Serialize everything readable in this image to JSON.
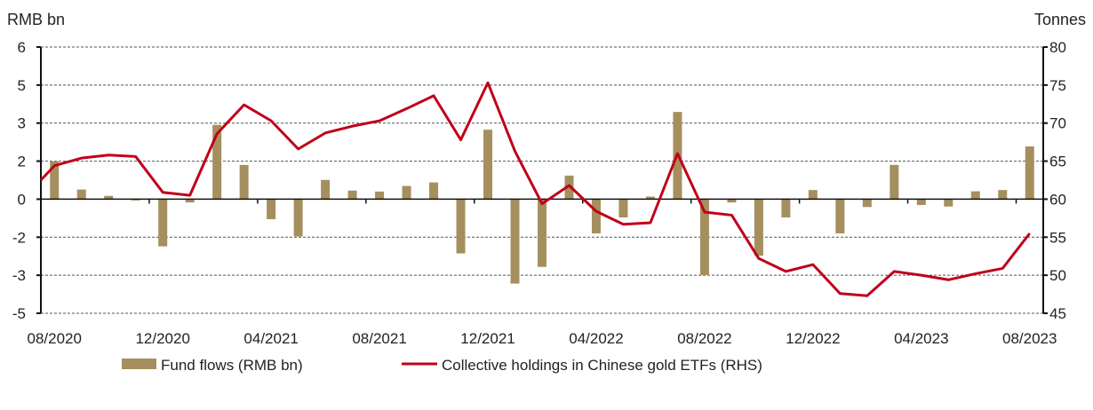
{
  "chart_data": {
    "type": "bar+line",
    "left_axis": {
      "title": "RMB bn",
      "range": [
        -4.5,
        6
      ],
      "step": 1.5,
      "tick_labels": [
        "6",
        "5",
        "3",
        "2",
        "0",
        "-2",
        "-3",
        "-5"
      ]
    },
    "right_axis": {
      "title": "Tonnes",
      "range": [
        45,
        80
      ],
      "step": 5,
      "tick_labels": [
        "80",
        "75",
        "70",
        "65",
        "60",
        "55",
        "50",
        "45"
      ]
    },
    "x_tick_labels": [
      "08/2020",
      "12/2020",
      "04/2021",
      "08/2021",
      "12/2021",
      "04/2022",
      "08/2022",
      "12/2022",
      "04/2023",
      "08/2023"
    ],
    "categories": [
      "08/2020",
      "09/2020",
      "10/2020",
      "11/2020",
      "12/2020",
      "01/2021",
      "02/2021",
      "03/2021",
      "04/2021",
      "05/2021",
      "06/2021",
      "07/2021",
      "08/2021",
      "09/2021",
      "10/2021",
      "11/2021",
      "12/2021",
      "01/2022",
      "02/2022",
      "03/2022",
      "04/2022",
      "05/2022",
      "06/2022",
      "07/2022",
      "08/2022",
      "09/2022",
      "10/2022",
      "11/2022",
      "12/2022",
      "01/2023",
      "02/2023",
      "03/2023",
      "04/2023",
      "05/2023",
      "06/2023",
      "07/2023",
      "08/2023"
    ],
    "grid": true,
    "legend_position": "bottom",
    "series": [
      {
        "name": "Fund flows (RMB bn)",
        "type": "bar",
        "axis": "left",
        "color": "#a68f5e",
        "values": [
          1.49,
          0.38,
          0.13,
          -0.05,
          -1.86,
          -0.13,
          2.93,
          1.35,
          -0.79,
          -1.47,
          0.76,
          0.34,
          0.3,
          0.52,
          0.66,
          -2.14,
          2.74,
          -3.33,
          -2.67,
          0.93,
          -1.35,
          -0.72,
          0.1,
          3.44,
          -2.99,
          -0.13,
          -2.23,
          -0.72,
          0.36,
          -1.35,
          -0.31,
          1.35,
          -0.23,
          -0.29,
          0.31,
          0.36,
          2.08
        ]
      },
      {
        "name": "Collective holdings in Chinese gold ETFs (RHS)",
        "type": "line",
        "axis": "right",
        "color": "#c0001a",
        "start_value": 62.5,
        "values": [
          64.4,
          65.4,
          65.8,
          65.6,
          60.9,
          60.5,
          68.6,
          72.4,
          70.3,
          66.6,
          68.7,
          69.6,
          70.3,
          71.9,
          73.6,
          67.8,
          75.3,
          66.3,
          59.4,
          61.8,
          58.4,
          56.7,
          56.9,
          66.0,
          58.3,
          57.9,
          52.2,
          50.5,
          51.4,
          47.6,
          47.3,
          50.5,
          50.0,
          49.4,
          50.2,
          50.9,
          55.5
        ]
      }
    ]
  }
}
